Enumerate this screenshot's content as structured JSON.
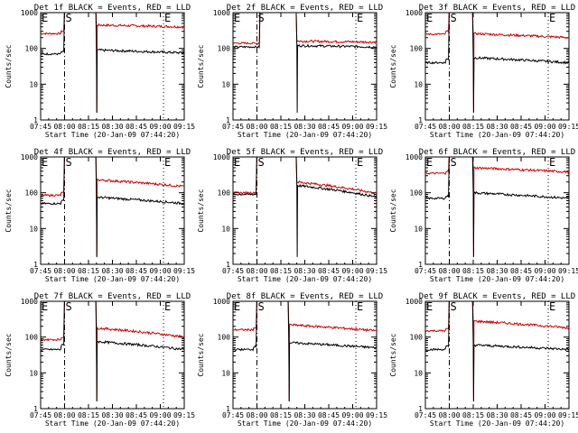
{
  "chart_data": [
    {
      "type": "line",
      "title": "Det 1f BLACK = Events, RED = LLD",
      "xlabel": "Start Time (20-Jan-09 07:44:20)",
      "ylabel": "Counts/sec",
      "yscale": "log",
      "ylim": [
        1,
        1000
      ],
      "x_ticks": [
        "07:45",
        "08:00",
        "08:15",
        "08:30",
        "08:45",
        "09:00",
        "09:15"
      ],
      "y_ticks": [
        "1",
        "10",
        "100",
        "1000"
      ],
      "markers": [
        {
          "label": "E",
          "time": "07:45"
        },
        {
          "label": "S",
          "time": "08:00"
        },
        {
          "label": "E",
          "time": "09:02"
        }
      ],
      "series": [
        {
          "color": "#cc0000",
          "pre": 300,
          "pre_base": 260,
          "peak_start": "08:00",
          "peak_end": "08:20",
          "post": 450,
          "post_end": 400,
          "drop": true,
          "step_time": "07:58"
        },
        {
          "color": "#000000",
          "pre": 80,
          "pre_base": 70,
          "peak_start": "08:00",
          "peak_end": "08:20",
          "post": 90,
          "post_end": 75,
          "drop": true,
          "step_time": "07:58"
        }
      ]
    },
    {
      "type": "line",
      "title": "Det 2f BLACK = Events, RED = LLD",
      "xlabel": "Start Time (20-Jan-09 07:44:20)",
      "ylabel": "Counts/sec",
      "yscale": "log",
      "ylim": [
        1,
        1000
      ],
      "x_ticks": [
        "07:45",
        "08:00",
        "08:15",
        "08:30",
        "08:45",
        "09:00",
        "09:15"
      ],
      "y_ticks": [
        "1",
        "10",
        "100",
        "1000"
      ],
      "markers": [
        {
          "label": "E",
          "time": "07:45"
        },
        {
          "label": "S",
          "time": "08:00"
        },
        {
          "label": "E",
          "time": "09:02"
        }
      ],
      "series": [
        {
          "color": "#cc0000",
          "pre": 140,
          "pre_base": 140,
          "peak_start": "08:02",
          "peak_end": "08:25",
          "post": 160,
          "post_end": 150,
          "drop": false,
          "step_time": "07:58"
        },
        {
          "color": "#000000",
          "pre": 110,
          "pre_base": 110,
          "peak_start": "08:02",
          "peak_end": "08:25",
          "post": 120,
          "post_end": 110,
          "drop": true,
          "step_time": "07:58"
        }
      ]
    },
    {
      "type": "line",
      "title": "Det 3f BLACK = Events, RED = LLD",
      "xlabel": "Start Time (20-Jan-09 07:44:20)",
      "ylabel": "Counts/sec",
      "yscale": "log",
      "ylim": [
        1,
        1000
      ],
      "x_ticks": [
        "07:45",
        "08:00",
        "08:15",
        "08:30",
        "08:45",
        "09:00",
        "09:15"
      ],
      "y_ticks": [
        "1",
        "10",
        "100",
        "1000"
      ],
      "markers": [
        {
          "label": "E",
          "time": "07:45"
        },
        {
          "label": "S",
          "time": "08:00"
        },
        {
          "label": "E",
          "time": "09:02"
        }
      ],
      "series": [
        {
          "color": "#cc0000",
          "pre": 300,
          "pre_base": 250,
          "peak_start": "08:00",
          "peak_end": "08:15",
          "post": 260,
          "post_end": 200,
          "drop": true,
          "step_time": "07:58"
        },
        {
          "color": "#000000",
          "pre": 50,
          "pre_base": 40,
          "peak_start": "08:00",
          "peak_end": "08:15",
          "post": 55,
          "post_end": 40,
          "drop": true,
          "step_time": "07:58"
        }
      ]
    },
    {
      "type": "line",
      "title": "Det 4f BLACK = Events, RED = LLD",
      "xlabel": "Start Time (20-Jan-09 07:44:20)",
      "ylabel": "Counts/sec",
      "yscale": "log",
      "ylim": [
        1,
        1000
      ],
      "x_ticks": [
        "07:45",
        "08:00",
        "08:15",
        "08:30",
        "08:45",
        "09:00",
        "09:15"
      ],
      "y_ticks": [
        "1",
        "10",
        "100",
        "1000"
      ],
      "markers": [
        {
          "label": "E",
          "time": "07:45"
        },
        {
          "label": "S",
          "time": "08:00"
        },
        {
          "label": "E",
          "time": "09:02"
        }
      ],
      "series": [
        {
          "color": "#cc0000",
          "pre": 100,
          "pre_base": 85,
          "peak_start": "08:00",
          "peak_end": "08:20",
          "post": 230,
          "post_end": 150,
          "drop": true,
          "step_time": "07:58"
        },
        {
          "color": "#000000",
          "pre": 60,
          "pre_base": 50,
          "peak_start": "08:00",
          "peak_end": "08:20",
          "post": 75,
          "post_end": 50,
          "drop": true,
          "step_time": "07:58"
        }
      ]
    },
    {
      "type": "line",
      "title": "Det 5f BLACK = Events, RED = LLD",
      "xlabel": "Start Time (20-Jan-09 07:44:20)",
      "ylabel": "Counts/sec",
      "yscale": "log",
      "ylim": [
        1,
        1000
      ],
      "x_ticks": [
        "07:45",
        "08:00",
        "08:15",
        "08:30",
        "08:45",
        "09:00",
        "09:15"
      ],
      "y_ticks": [
        "1",
        "10",
        "100",
        "1000"
      ],
      "markers": [
        {
          "label": "E",
          "time": "07:45"
        },
        {
          "label": "S",
          "time": "08:00"
        },
        {
          "label": "E",
          "time": "09:02"
        }
      ],
      "series": [
        {
          "color": "#cc0000",
          "pre": 100,
          "pre_base": 100,
          "peak_start": "08:00",
          "peak_end": "08:25",
          "post": 200,
          "post_end": 95,
          "drop": false,
          "step_time": "07:58"
        },
        {
          "color": "#000000",
          "pre": 90,
          "pre_base": 90,
          "peak_start": "08:00",
          "peak_end": "08:25",
          "post": 160,
          "post_end": 75,
          "drop": true,
          "step_time": "07:58"
        }
      ]
    },
    {
      "type": "line",
      "title": "Det 6f BLACK = Events, RED = LLD",
      "xlabel": "Start Time (20-Jan-09 07:44:20)",
      "ylabel": "Counts/sec",
      "yscale": "log",
      "ylim": [
        1,
        1000
      ],
      "x_ticks": [
        "07:45",
        "08:00",
        "08:15",
        "08:30",
        "08:45",
        "09:00",
        "09:15"
      ],
      "y_ticks": [
        "1",
        "10",
        "100",
        "1000"
      ],
      "markers": [
        {
          "label": "E",
          "time": "07:45"
        },
        {
          "label": "S",
          "time": "08:00"
        },
        {
          "label": "E",
          "time": "09:02"
        }
      ],
      "series": [
        {
          "color": "#cc0000",
          "pre": 400,
          "pre_base": 350,
          "peak_start": "08:00",
          "peak_end": "08:15",
          "post": 500,
          "post_end": 380,
          "drop": true,
          "step_time": "07:58"
        },
        {
          "color": "#000000",
          "pre": 80,
          "pre_base": 70,
          "peak_start": "08:00",
          "peak_end": "08:15",
          "post": 100,
          "post_end": 70,
          "drop": true,
          "step_time": "07:58"
        }
      ]
    },
    {
      "type": "line",
      "title": "Det 7f BLACK = Events, RED = LLD",
      "xlabel": "Start Time (20-Jan-09 07:44:20)",
      "ylabel": "Counts/sec",
      "yscale": "log",
      "ylim": [
        1,
        1000
      ],
      "x_ticks": [
        "07:45",
        "08:00",
        "08:15",
        "08:30",
        "08:45",
        "09:00",
        "09:15"
      ],
      "y_ticks": [
        "1",
        "10",
        "100",
        "1000"
      ],
      "markers": [
        {
          "label": "E",
          "time": "07:45"
        },
        {
          "label": "S",
          "time": "08:00"
        },
        {
          "label": "E",
          "time": "09:02"
        }
      ],
      "series": [
        {
          "color": "#cc0000",
          "pre": 100,
          "pre_base": 85,
          "peak_start": "08:00",
          "peak_end": "08:20",
          "post": 180,
          "post_end": 100,
          "drop": true,
          "step_time": "07:58"
        },
        {
          "color": "#000000",
          "pre": 60,
          "pre_base": 45,
          "peak_start": "08:00",
          "peak_end": "08:20",
          "post": 75,
          "post_end": 45,
          "drop": true,
          "step_time": "07:58"
        }
      ]
    },
    {
      "type": "line",
      "title": "Det 8f BLACK = Events, RED = LLD",
      "xlabel": "Start Time (20-Jan-09 07:44:20)",
      "ylabel": "Counts/sec",
      "yscale": "log",
      "ylim": [
        1,
        1000
      ],
      "x_ticks": [
        "07:45",
        "08:00",
        "08:15",
        "08:30",
        "08:45",
        "09:00",
        "09:15"
      ],
      "y_ticks": [
        "1",
        "10",
        "100",
        "1000"
      ],
      "markers": [
        {
          "label": "E",
          "time": "07:45"
        },
        {
          "label": "S",
          "time": "08:00"
        },
        {
          "label": "E",
          "time": "09:02"
        }
      ],
      "series": [
        {
          "color": "#cc0000",
          "pre": 180,
          "pre_base": 160,
          "peak_start": "08:00",
          "peak_end": "08:20",
          "post": 220,
          "post_end": 150,
          "drop": true,
          "step_time": "07:58"
        },
        {
          "color": "#000000",
          "pre": 55,
          "pre_base": 45,
          "peak_start": "08:00",
          "peak_end": "08:20",
          "post": 70,
          "post_end": 50,
          "drop": true,
          "step_time": "07:58"
        }
      ]
    },
    {
      "type": "line",
      "title": "Det 9f BLACK = Events, RED = LLD",
      "xlabel": "Start Time (20-Jan-09 07:44:20)",
      "ylabel": "Counts/sec",
      "yscale": "log",
      "ylim": [
        1,
        1000
      ],
      "x_ticks": [
        "07:45",
        "08:00",
        "08:15",
        "08:30",
        "08:45",
        "09:00",
        "09:15"
      ],
      "y_ticks": [
        "1",
        "10",
        "100",
        "1000"
      ],
      "markers": [
        {
          "label": "E",
          "time": "07:45"
        },
        {
          "label": "S",
          "time": "08:00"
        },
        {
          "label": "E",
          "time": "09:02"
        }
      ],
      "series": [
        {
          "color": "#cc0000",
          "pre": 170,
          "pre_base": 150,
          "peak_start": "08:00",
          "peak_end": "08:15",
          "post": 280,
          "post_end": 180,
          "drop": true,
          "step_time": "07:58"
        },
        {
          "color": "#000000",
          "pre": 55,
          "pre_base": 45,
          "peak_start": "08:00",
          "peak_end": "08:15",
          "post": 60,
          "post_end": 45,
          "drop": true,
          "step_time": "07:58"
        }
      ]
    }
  ]
}
